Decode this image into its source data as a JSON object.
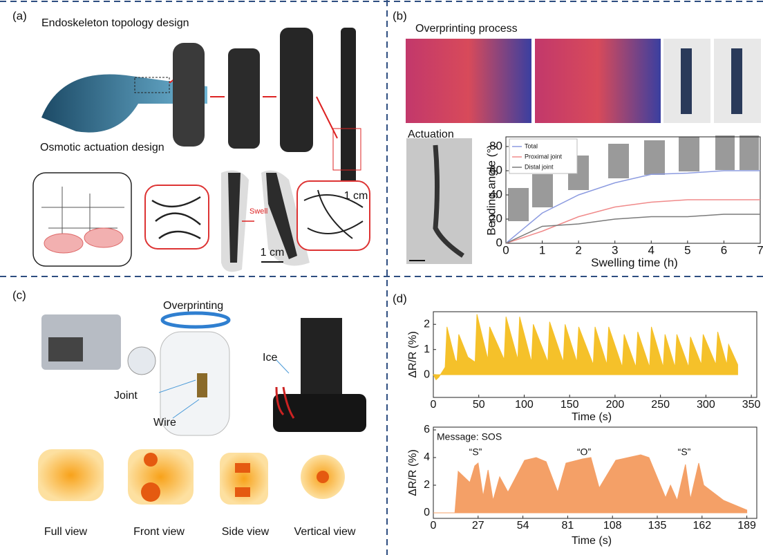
{
  "panels": {
    "a": {
      "label": "(a)",
      "title": "Endoskeleton topology design",
      "scale_top": "1 cm",
      "subtitle": "Osmotic actuation design",
      "swell": "Swell",
      "scale_bottom": "1 cm"
    },
    "b": {
      "label": "(b)",
      "title": "Overprinting process",
      "subtitle": "Actuation"
    },
    "c": {
      "label": "(c)",
      "overprinting": "Overprinting",
      "joint": "Joint",
      "wire": "Wire",
      "ice": "Ice",
      "views": [
        "Full view",
        "Front view",
        "Side view",
        "Vertical view"
      ]
    },
    "d": {
      "label": "(d)"
    }
  },
  "chart_data": [
    {
      "type": "line",
      "xlabel": "Swelling time (h)",
      "ylabel": "Bending angle (°)",
      "x": [
        0,
        1,
        2,
        3,
        4,
        5,
        6,
        7
      ],
      "series": [
        {
          "name": "Total",
          "color": "#8c9be0",
          "values": [
            0,
            25,
            40,
            50,
            57,
            58,
            60,
            60
          ]
        },
        {
          "name": "Proximal joint",
          "color": "#f08a8a",
          "values": [
            0,
            10,
            22,
            30,
            34,
            36,
            36,
            36
          ]
        },
        {
          "name": "Distal joint",
          "color": "#7a7a7a",
          "values": [
            0,
            14,
            16,
            20,
            22,
            22,
            24,
            24
          ]
        }
      ],
      "xlim": [
        0,
        7
      ],
      "ylim": [
        0,
        88
      ],
      "xticks": [
        0,
        1,
        2,
        3,
        4,
        5,
        6,
        7
      ],
      "yticks": [
        0,
        20,
        40,
        60,
        80
      ],
      "legend": "upper-left"
    },
    {
      "type": "area",
      "xlabel": "Time (s)",
      "ylabel": "ΔR/R (%)",
      "color": "#f5c12a",
      "x": [
        0,
        3,
        6,
        13,
        15,
        24,
        26,
        28,
        38,
        46,
        48,
        60,
        62,
        78,
        80,
        93,
        95,
        108,
        110,
        126,
        128,
        143,
        145,
        158,
        160,
        176,
        178,
        191,
        193,
        208,
        210,
        223,
        225,
        238,
        240,
        253,
        255,
        266,
        268,
        281,
        283,
        295,
        297,
        311,
        313,
        323,
        325,
        335
      ],
      "values": [
        0,
        -0.2,
        -0.1,
        0.3,
        1.9,
        0.6,
        0.5,
        1.6,
        0.7,
        0.5,
        2.4,
        0.6,
        1.9,
        0.6,
        2.3,
        0.6,
        2.3,
        0.5,
        2.0,
        0.5,
        2.1,
        0.5,
        2.0,
        0.5,
        1.9,
        0.4,
        1.9,
        0.4,
        1.9,
        0.3,
        1.6,
        0.3,
        1.7,
        0.3,
        1.9,
        0.3,
        1.6,
        0.3,
        1.6,
        0.3,
        1.5,
        0.4,
        1.6,
        0.4,
        1.7,
        0.4,
        1.2,
        0.4
      ],
      "xlim": [
        0,
        356
      ],
      "ylim": [
        -0.9,
        2.5
      ],
      "xticks": [
        0,
        50,
        100,
        150,
        200,
        250,
        300,
        350
      ],
      "yticks": [
        0,
        1,
        2
      ]
    },
    {
      "type": "area",
      "xlabel": "Time (s)",
      "ylabel": "ΔR/R (%)",
      "color": "#f4a067",
      "annotations": [
        "Message: SOS",
        "“S”",
        "“O”",
        "“S”"
      ],
      "x": [
        0,
        13,
        15,
        22,
        25,
        27,
        30,
        33,
        36,
        40,
        45,
        55,
        62,
        68,
        75,
        80,
        90,
        95,
        100,
        110,
        125,
        130,
        140,
        143,
        147,
        152,
        155,
        160,
        163,
        175,
        189
      ],
      "values": [
        0,
        0,
        3.0,
        2.2,
        3.4,
        3.6,
        1.2,
        3.1,
        0.9,
        2.6,
        1.5,
        3.8,
        4.0,
        3.7,
        1.5,
        3.6,
        3.9,
        4.0,
        1.8,
        3.8,
        4.2,
        4.0,
        1.1,
        2.0,
        0.9,
        3.5,
        1.0,
        3.6,
        2.0,
        0.9,
        0.2
      ],
      "xlim": [
        0,
        195
      ],
      "ylim": [
        -0.4,
        6.2
      ],
      "xticks": [
        0,
        27,
        54,
        81,
        108,
        135,
        162,
        189
      ],
      "yticks": [
        0,
        2,
        4,
        6
      ]
    }
  ]
}
